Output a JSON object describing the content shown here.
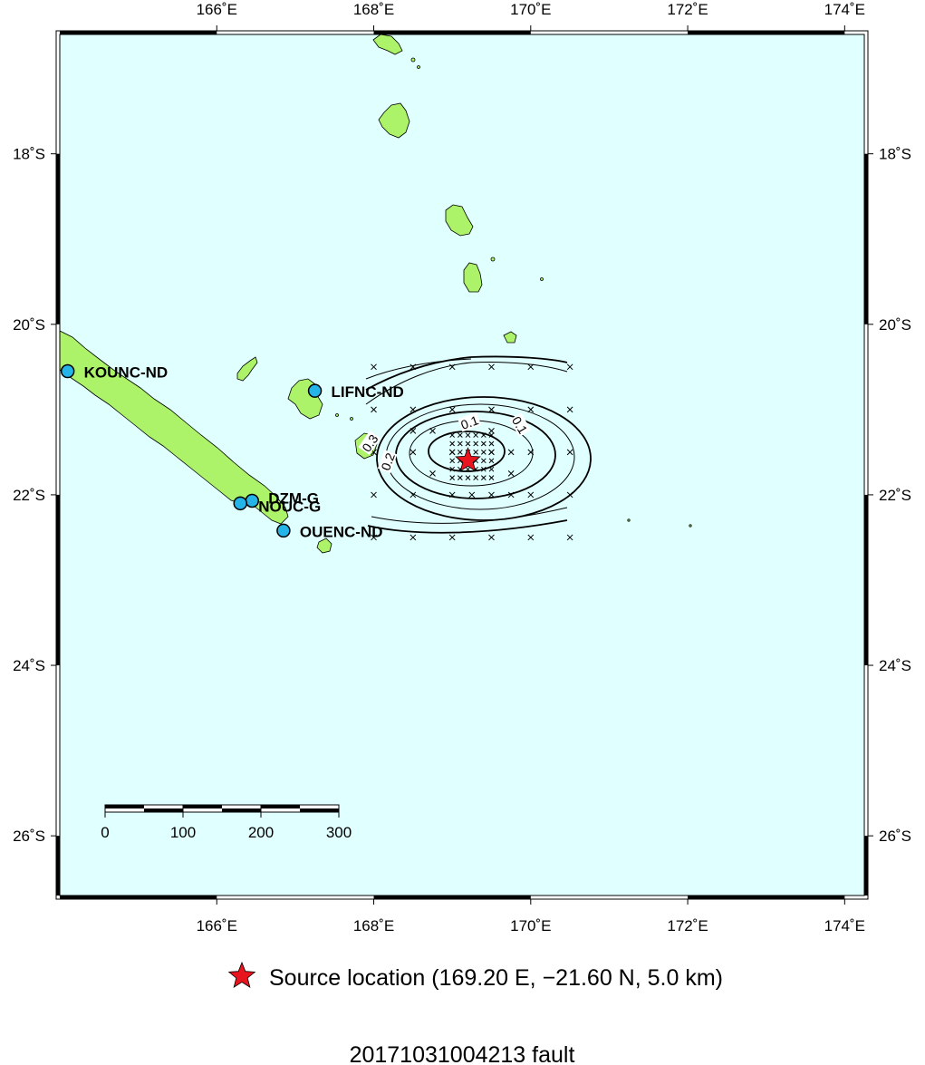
{
  "map": {
    "bounds": {
      "lon_min": 164.0,
      "lon_max": 174.25,
      "lat_min": -26.7,
      "lat_max": -16.6
    },
    "ocean_color": "#e0ffff",
    "land_color": "#adf36a",
    "lon_ticks": [
      {
        "value": 166,
        "label": "166˚E"
      },
      {
        "value": 168,
        "label": "168˚E"
      },
      {
        "value": 170,
        "label": "170˚E"
      },
      {
        "value": 172,
        "label": "172˚E"
      },
      {
        "value": 174,
        "label": "174˚E"
      }
    ],
    "lat_ticks": [
      {
        "value": -18,
        "label": "18˚S"
      },
      {
        "value": -20,
        "label": "20˚S"
      },
      {
        "value": -22,
        "label": "22˚S"
      },
      {
        "value": -24,
        "label": "24˚S"
      },
      {
        "value": -26,
        "label": "26˚S"
      }
    ]
  },
  "stations": [
    {
      "name": "KOUNC-ND",
      "lon": 164.1,
      "lat": -20.55,
      "color": "#25b4e8"
    },
    {
      "name": "LIFNC-ND",
      "lon": 167.25,
      "lat": -20.78,
      "color": "#25b4e8"
    },
    {
      "name": "DZM-G",
      "lon": 166.45,
      "lat": -22.07,
      "color": "#25b4e8"
    },
    {
      "name": "NOUC-G",
      "lon": 166.3,
      "lat": -22.1,
      "color": "#25b4e8"
    },
    {
      "name": "OUENC-ND",
      "lon": 166.85,
      "lat": -22.42,
      "color": "#25b4e8"
    }
  ],
  "source": {
    "lon": 169.2,
    "lat": -21.6,
    "depth_km": 5.0,
    "color": "#e8141e"
  },
  "contours": {
    "labels": [
      "0.1",
      "0.1",
      "0.2",
      "0.3"
    ],
    "grid_lon": [
      168.0,
      168.5,
      169.0,
      169.5,
      170.0,
      170.5
    ],
    "grid_lat": [
      -20.5,
      -21.0,
      -21.5,
      -22.0,
      -22.5
    ]
  },
  "scale_bar": {
    "labels": [
      "0",
      "100",
      "200",
      "300"
    ],
    "unit": "km"
  },
  "legend": {
    "text": "Source location (169.20 E, −21.60 N, 5.0 km)"
  },
  "title": "20171031004213 fault"
}
